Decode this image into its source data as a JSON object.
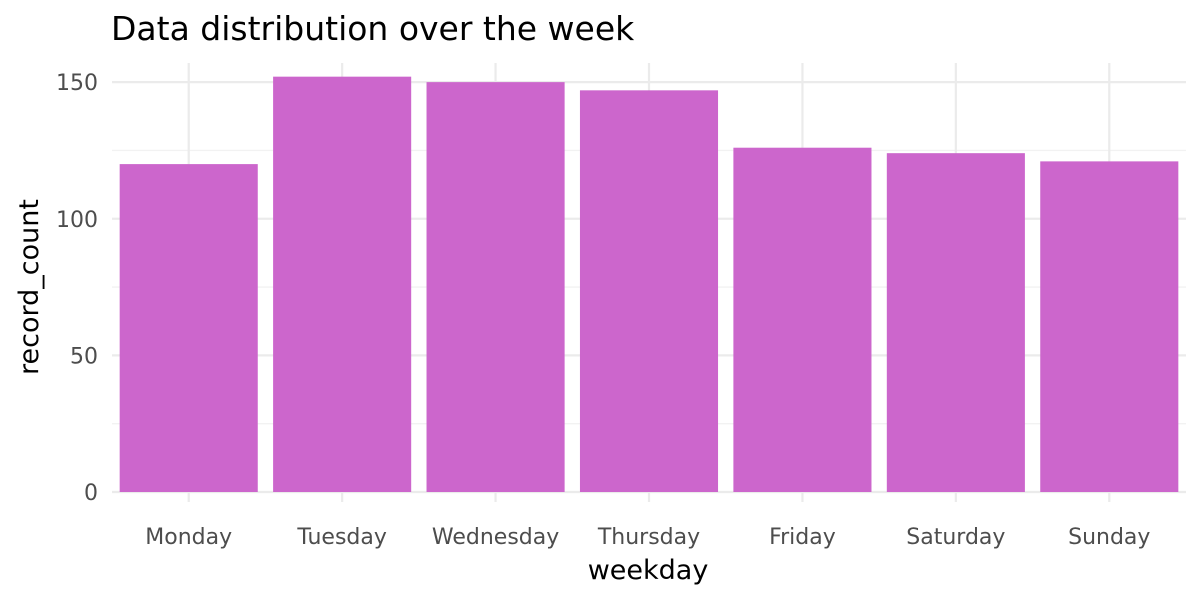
{
  "chart_data": {
    "type": "bar",
    "title": "Data distribution over the week",
    "xlabel": "weekday",
    "ylabel": "record_count",
    "categories": [
      "Monday",
      "Tuesday",
      "Wednesday",
      "Thursday",
      "Friday",
      "Saturday",
      "Sunday"
    ],
    "values": [
      120,
      152,
      150,
      147,
      126,
      124,
      121
    ],
    "ylim": [
      0,
      157
    ],
    "yticks": [
      0,
      50,
      100,
      150
    ],
    "ytick_labels": [
      "0",
      "50",
      "100",
      "150"
    ],
    "grid": true,
    "legend": "none",
    "bar_color": "#CC66CC"
  }
}
